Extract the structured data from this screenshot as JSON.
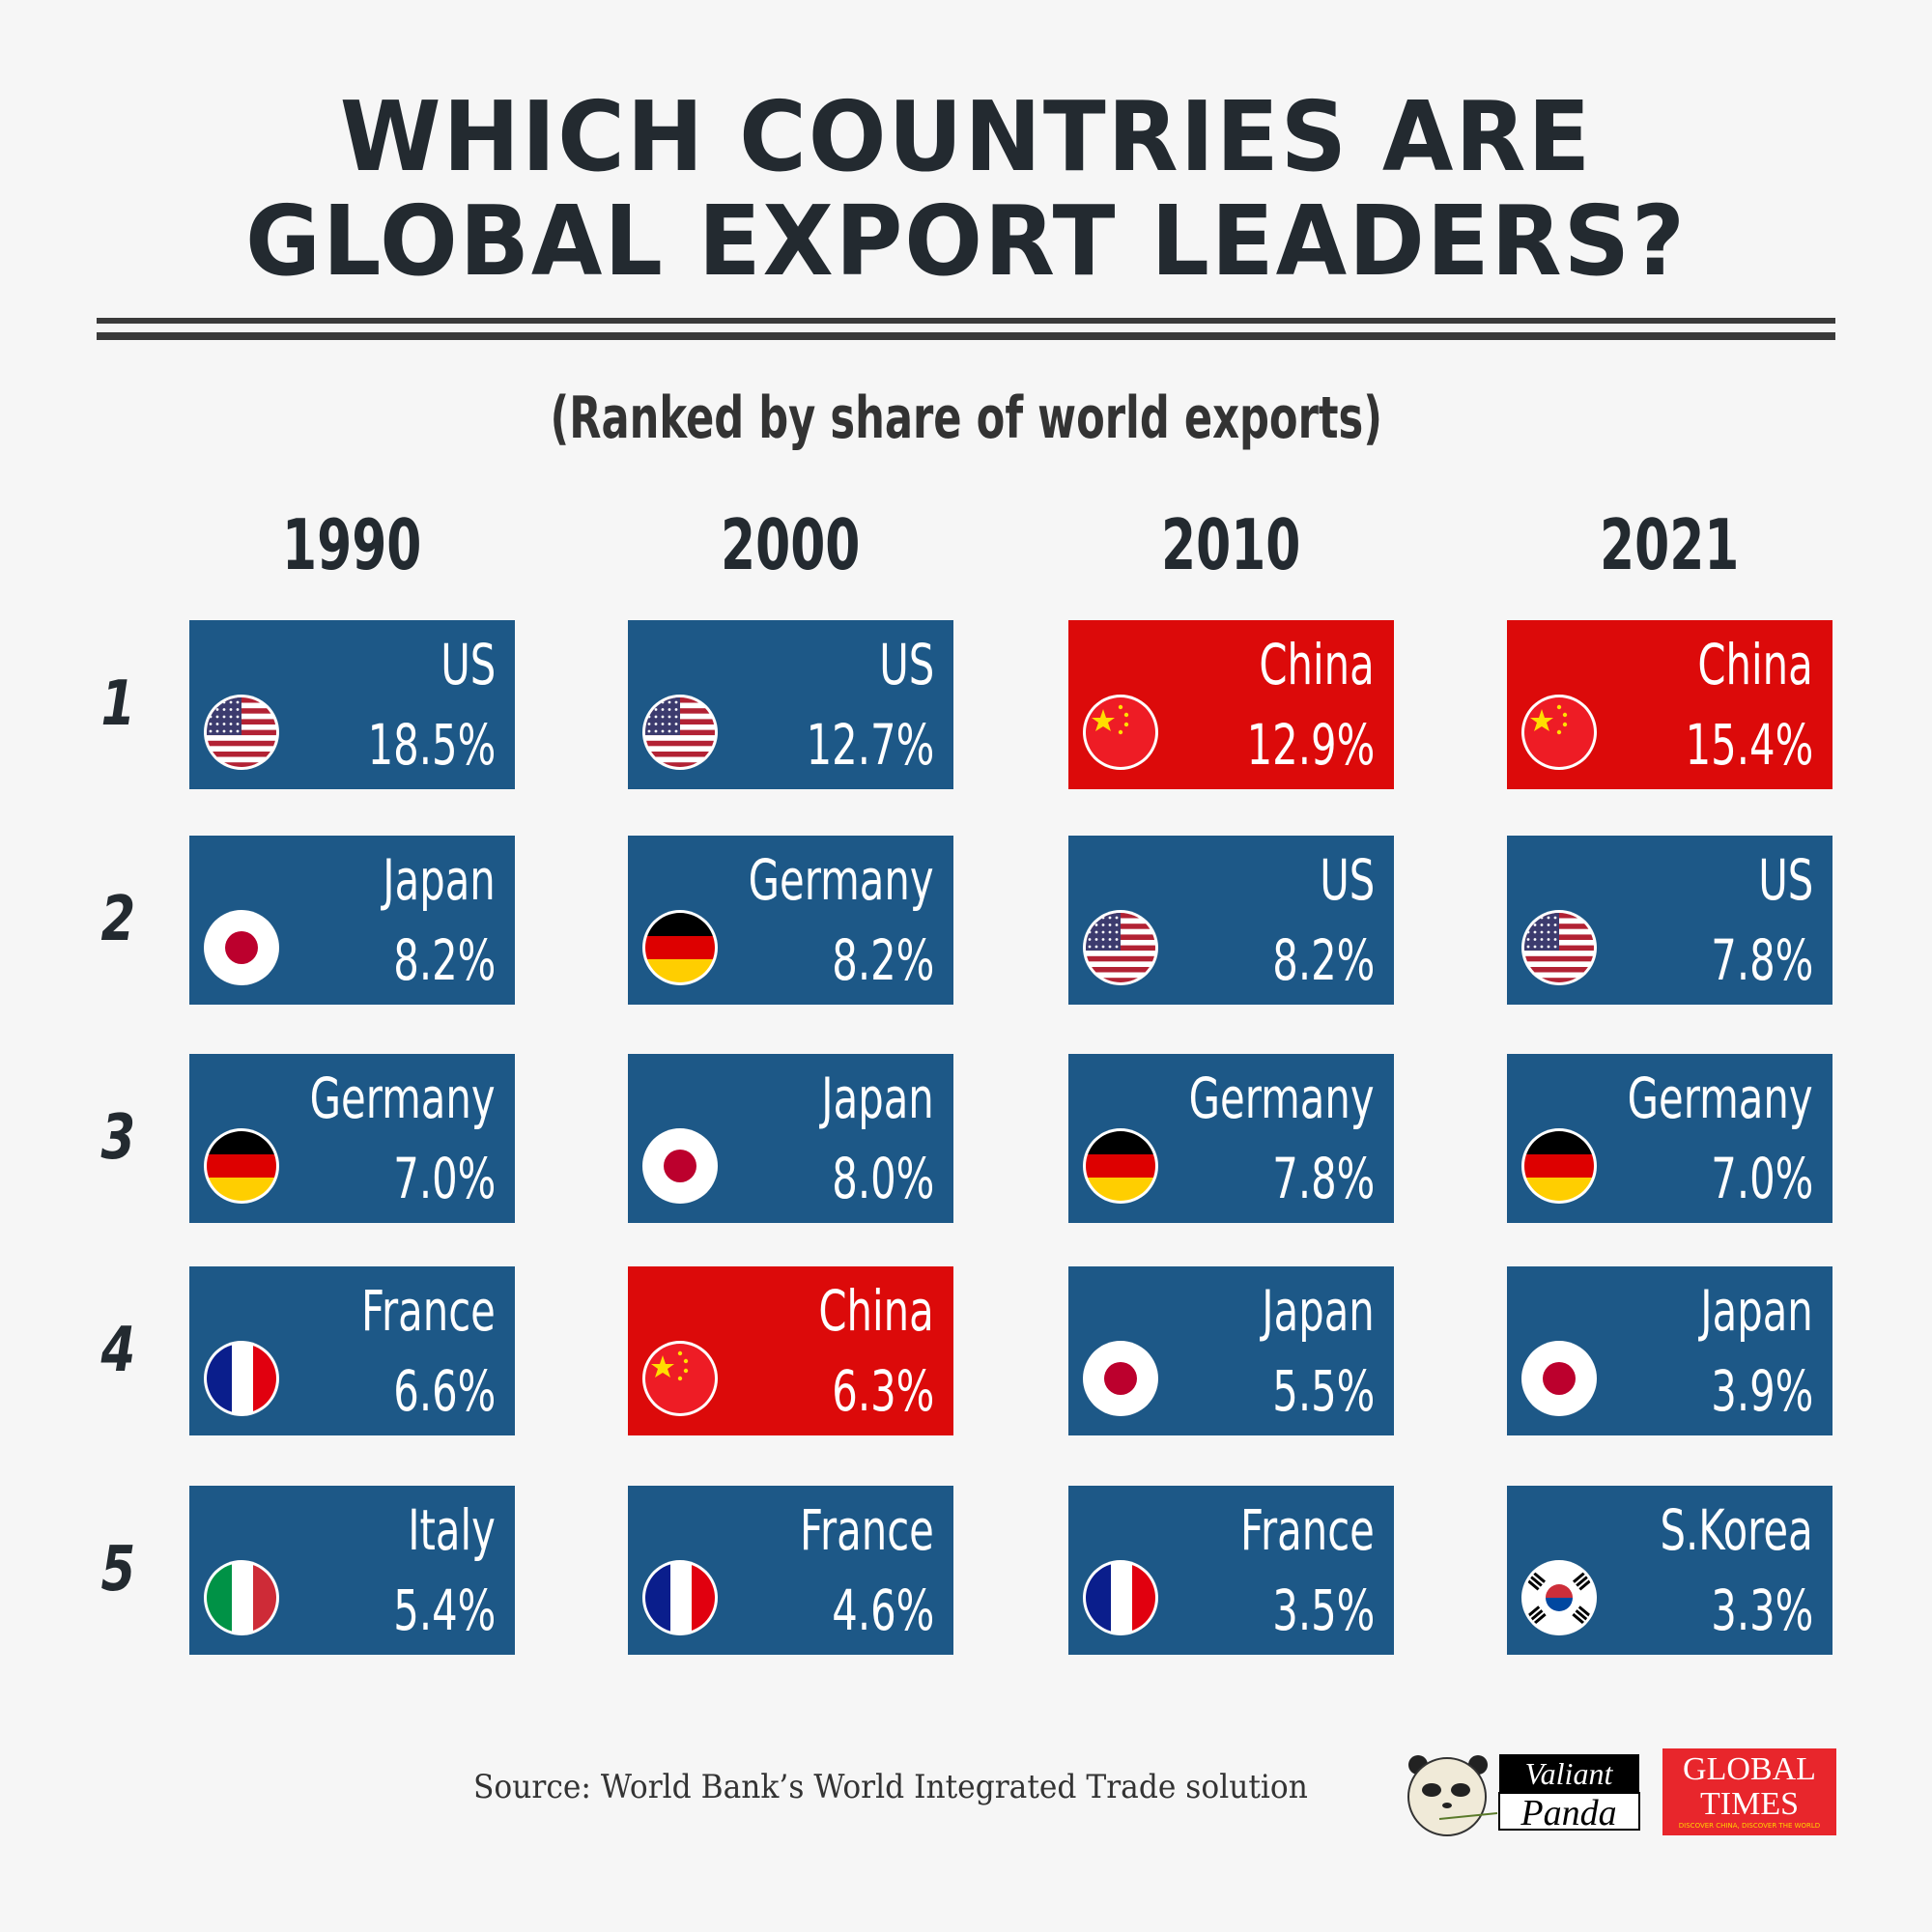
{
  "title": {
    "line1": "WHICH COUNTRIES ARE",
    "line2": "GLOBAL EXPORT LEADERS?"
  },
  "subtitle": "(Ranked by share of world exports)",
  "years": [
    "1990",
    "2000",
    "2010",
    "2021"
  ],
  "ranks": [
    "1",
    "2",
    "3",
    "4",
    "5"
  ],
  "colors": {
    "default_card": "#1d5887",
    "china_card": "#dc0a0a",
    "background": "#f6f6f6"
  },
  "grid": [
    [
      {
        "country": "US",
        "share": "18.5%",
        "flag": "us-flag-icon"
      },
      {
        "country": "Japan",
        "share": "8.2%",
        "flag": "japan-flag-icon"
      },
      {
        "country": "Germany",
        "share": "7.0%",
        "flag": "germany-flag-icon"
      },
      {
        "country": "France",
        "share": "6.6%",
        "flag": "france-flag-icon"
      },
      {
        "country": "Italy",
        "share": "5.4%",
        "flag": "italy-flag-icon"
      }
    ],
    [
      {
        "country": "US",
        "share": "12.7%",
        "flag": "us-flag-icon"
      },
      {
        "country": "Germany",
        "share": "8.2%",
        "flag": "germany-flag-icon"
      },
      {
        "country": "Japan",
        "share": "8.0%",
        "flag": "japan-flag-icon"
      },
      {
        "country": "China",
        "share": "6.3%",
        "flag": "china-flag-icon"
      },
      {
        "country": "France",
        "share": "4.6%",
        "flag": "france-flag-icon"
      }
    ],
    [
      {
        "country": "China",
        "share": "12.9%",
        "flag": "china-flag-icon"
      },
      {
        "country": "US",
        "share": "8.2%",
        "flag": "us-flag-icon"
      },
      {
        "country": "Germany",
        "share": "7.8%",
        "flag": "germany-flag-icon"
      },
      {
        "country": "Japan",
        "share": "5.5%",
        "flag": "japan-flag-icon"
      },
      {
        "country": "France",
        "share": "3.5%",
        "flag": "france-flag-icon"
      }
    ],
    [
      {
        "country": "China",
        "share": "15.4%",
        "flag": "china-flag-icon"
      },
      {
        "country": "US",
        "share": "7.8%",
        "flag": "us-flag-icon"
      },
      {
        "country": "Germany",
        "share": "7.0%",
        "flag": "germany-flag-icon"
      },
      {
        "country": "Japan",
        "share": "3.9%",
        "flag": "japan-flag-icon"
      },
      {
        "country": "S.Korea",
        "share": "3.3%",
        "flag": "south-korea-flag-icon"
      }
    ]
  ],
  "source": "Source: World Bank’s World Integrated Trade solution",
  "logos": {
    "valiant_panda": "Valiant Panda",
    "global_times": "GLOBAL TIMES",
    "global_times_tagline": "DISCOVER CHINA, DISCOVER THE WORLD"
  }
}
